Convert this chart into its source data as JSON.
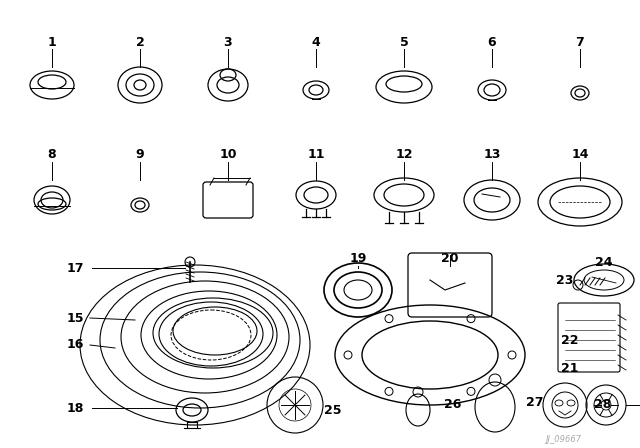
{
  "background_color": "#ffffff",
  "line_color": "#000000",
  "watermark": "JJ_09667",
  "fig_w": 6.4,
  "fig_h": 4.48,
  "dpi": 100
}
